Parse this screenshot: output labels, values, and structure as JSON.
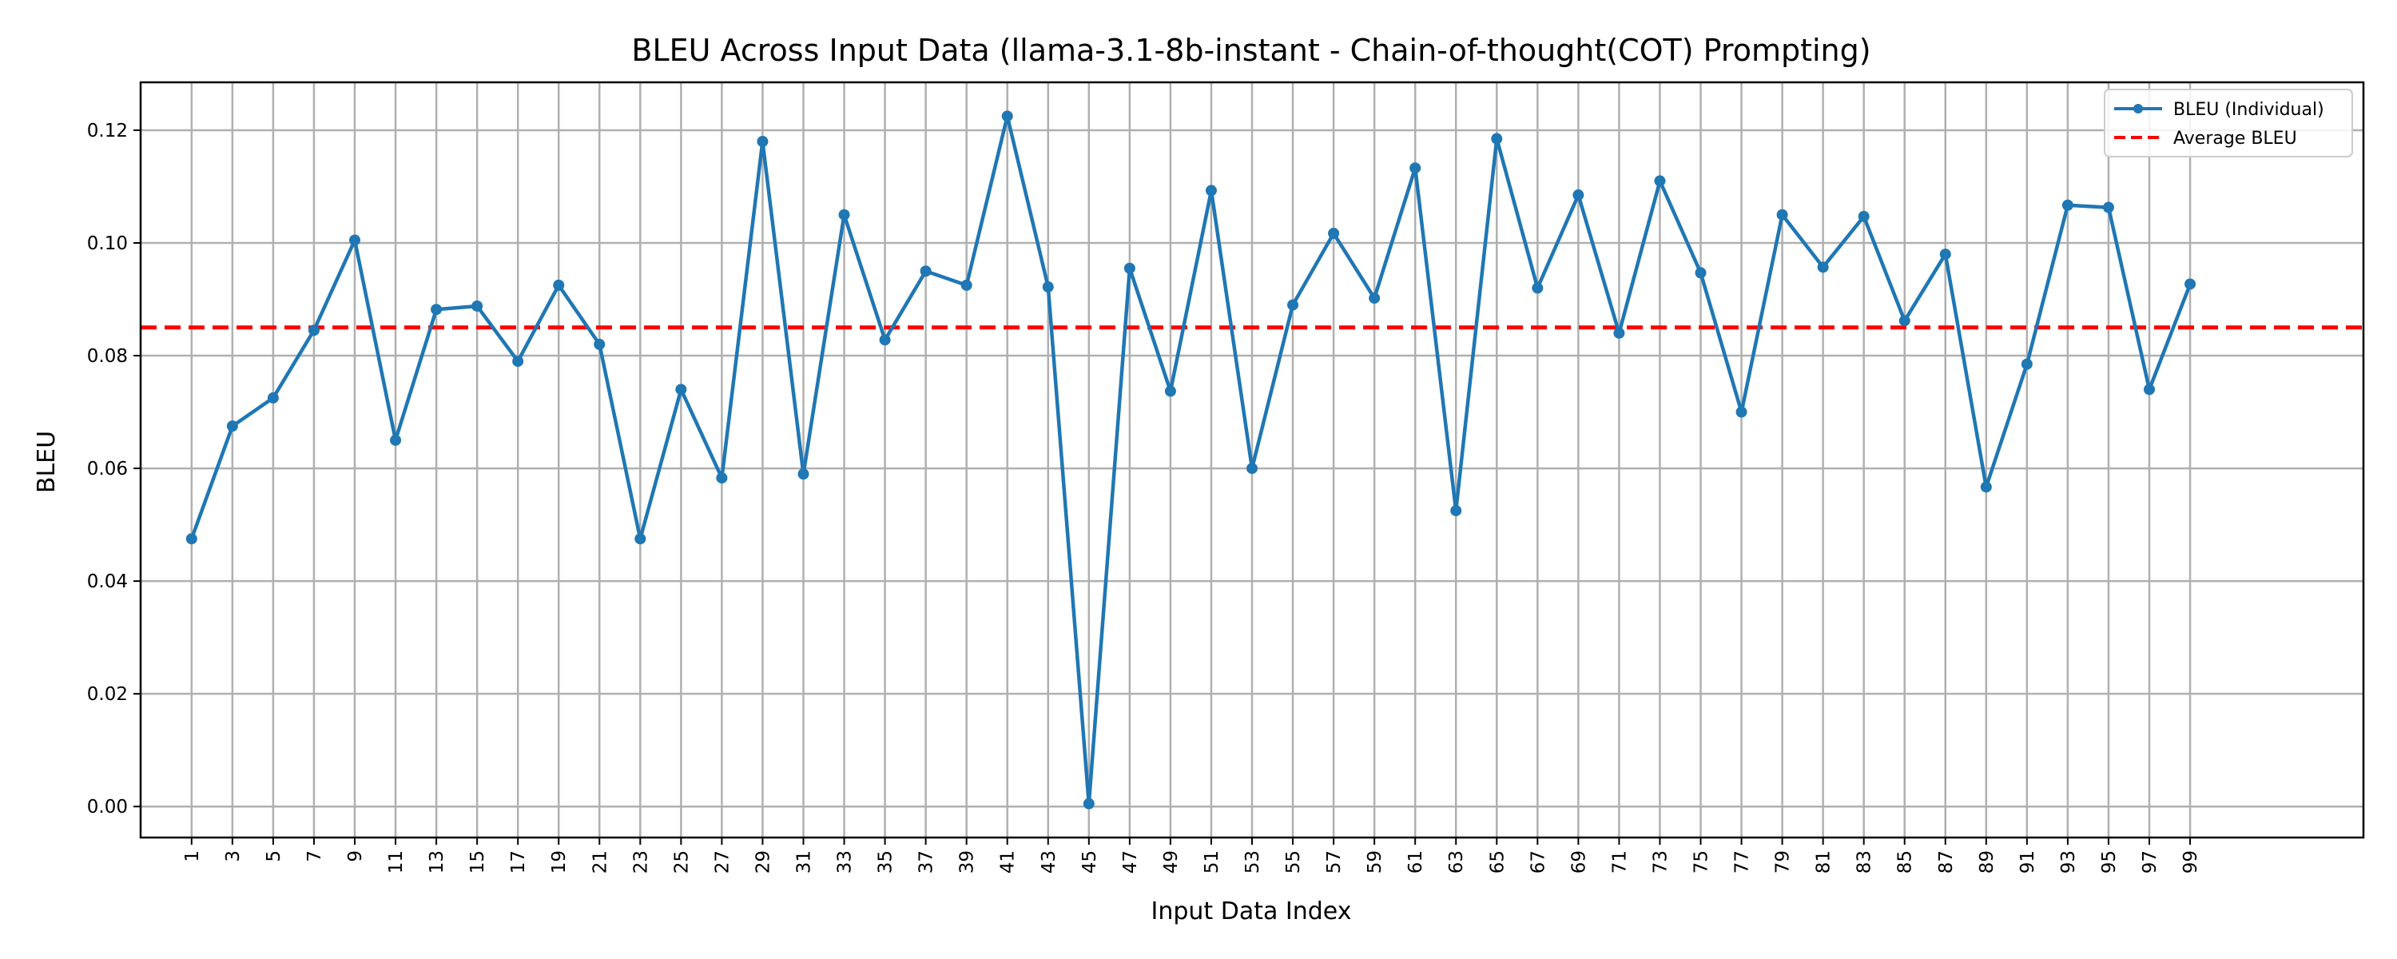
{
  "chart_data": {
    "type": "line",
    "title": "BLEU Across Input Data (llama-3.1-8b-instant - Chain-of-thought(COT) Prompting)",
    "xlabel": "Input Data Index",
    "ylabel": "BLEU",
    "grid": true,
    "legend_position": "top-right",
    "xlim": [
      -1.5,
      107.5
    ],
    "ylim": [
      -0.0055,
      0.1285
    ],
    "xticks": [
      1,
      3,
      5,
      7,
      9,
      11,
      13,
      15,
      17,
      19,
      21,
      23,
      25,
      27,
      29,
      31,
      33,
      35,
      37,
      39,
      41,
      43,
      45,
      47,
      49,
      51,
      53,
      55,
      57,
      59,
      61,
      63,
      65,
      67,
      69,
      71,
      73,
      75,
      77,
      79,
      81,
      83,
      85,
      87,
      89,
      91,
      93,
      95,
      97,
      99
    ],
    "yticks": [
      "0.00",
      "0.02",
      "0.04",
      "0.06",
      "0.08",
      "0.10",
      "0.12"
    ],
    "series": [
      {
        "name": "BLEU (Individual)",
        "color": "#1f77b4",
        "style": "solid-with-markers",
        "x": [
          1,
          3,
          5,
          7,
          9,
          11,
          13,
          15,
          17,
          19,
          21,
          23,
          25,
          27,
          29,
          31,
          33,
          35,
          37,
          39,
          41,
          43,
          45,
          47,
          49,
          51,
          53,
          55,
          57,
          59,
          61,
          63,
          65,
          67,
          69,
          71,
          73,
          75,
          77,
          79,
          81,
          83,
          85,
          87,
          89,
          91,
          93,
          95,
          97,
          99
        ],
        "values": [
          0.0475,
          0.0675,
          0.0725,
          0.0845,
          0.1005,
          0.065,
          0.0882,
          0.0888,
          0.079,
          0.0925,
          0.082,
          0.0475,
          0.074,
          0.0583,
          0.118,
          0.059,
          0.105,
          0.0828,
          0.095,
          0.0925,
          0.1225,
          0.0922,
          0.0005,
          0.0955,
          0.0737,
          0.1093,
          0.06,
          0.089,
          0.1017,
          0.0902,
          0.1133,
          0.0525,
          0.1185,
          0.092,
          0.1085,
          0.084,
          0.111,
          0.0947,
          0.07,
          0.105,
          0.0957,
          0.1047,
          0.0862,
          0.098,
          0.0567,
          0.0785,
          0.1067,
          0.1063,
          0.074,
          0.0927
        ]
      },
      {
        "name": "Average BLEU",
        "color": "#ff0000",
        "style": "dashed",
        "value": 0.085
      }
    ]
  }
}
